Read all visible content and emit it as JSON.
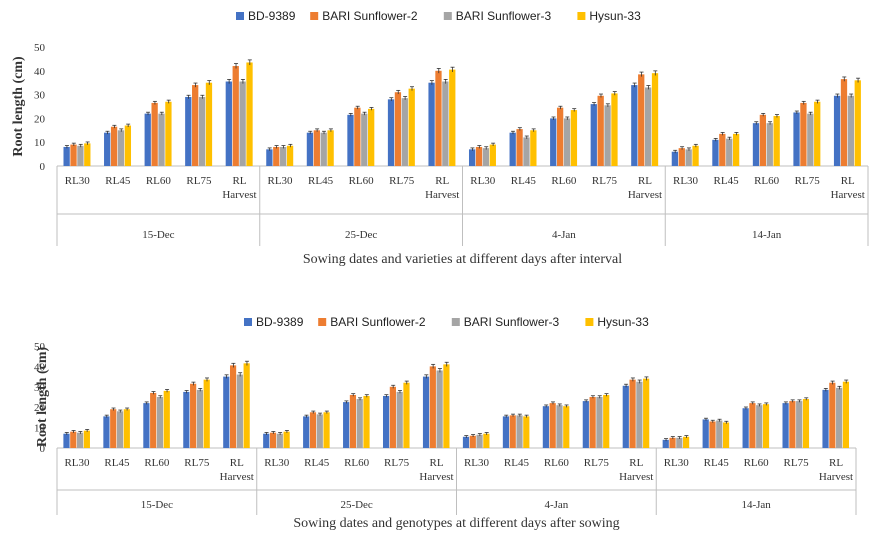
{
  "colors": {
    "BD-9389": "#4472C4",
    "BARI Sunflower-2": "#ED7D31",
    "BARI Sunflower-3": "#A5A5A5",
    "Hysun-33": "#FFC000"
  },
  "chart_data": [
    {
      "type": "bar",
      "title": "",
      "xlabel": "Sowing dates and varieties at different days after interval",
      "ylabel": "Root length (cm)",
      "ylim": [
        0,
        50
      ],
      "yticks": [
        0,
        10,
        20,
        30,
        40,
        50
      ],
      "grid": false,
      "legend": "top",
      "groups": [
        "15-Dec",
        "25-Dec",
        "4-Jan",
        "14-Jan"
      ],
      "categories": [
        "RL30",
        "RL45",
        "RL60",
        "RL75",
        "RL Harvest"
      ],
      "series": [
        {
          "name": "BD-9389",
          "values": [
            [
              8,
              14,
              22,
              29,
              35.5
            ],
            [
              7,
              14,
              21.5,
              28,
              35
            ],
            [
              7,
              14,
              20,
              26,
              34
            ],
            [
              6,
              11,
              18,
              22.5,
              29.5
            ]
          ]
        },
        {
          "name": "BARI Sunflower-2",
          "values": [
            [
              9,
              16.5,
              26.5,
              34,
              42
            ],
            [
              8,
              15,
              24.5,
              31,
              40
            ],
            [
              8,
              15.5,
              24.5,
              29.5,
              38.5
            ],
            [
              7.5,
              13.5,
              21.5,
              26.5,
              36.5
            ]
          ]
        },
        {
          "name": "BARI Sunflower-3",
          "values": [
            [
              8.5,
              15,
              22,
              29,
              35.5
            ],
            [
              8,
              14,
              22,
              28.5,
              35.5
            ],
            [
              7.5,
              12,
              20,
              25.5,
              33
            ],
            [
              7,
              11.5,
              18,
              22,
              29.5
            ]
          ]
        },
        {
          "name": "Hysun-33",
          "values": [
            [
              9.5,
              17,
              27,
              35,
              43.5
            ],
            [
              8.5,
              15,
              24,
              32.5,
              40.5
            ],
            [
              9,
              15,
              23.5,
              30.5,
              39
            ],
            [
              8.5,
              13.5,
              21,
              27,
              36
            ]
          ]
        }
      ]
    },
    {
      "type": "bar",
      "title": "",
      "xlabel": "Sowing dates and genotypes  at different days after sowing",
      "ylabel": "Root length (cm)",
      "ylim": [
        0,
        50
      ],
      "yticks": [
        0,
        10,
        20,
        30,
        40,
        50
      ],
      "grid": false,
      "legend": "top",
      "groups": [
        "15-Dec",
        "25-Dec",
        "4-Jan",
        "14-Jan"
      ],
      "categories": [
        "RL30",
        "RL45",
        "RL60",
        "RL75",
        "RL Harvest"
      ],
      "series": [
        {
          "name": "BD-9389",
          "values": [
            [
              7,
              15.5,
              22,
              27.5,
              35
            ],
            [
              7,
              15.5,
              22.5,
              25.5,
              35
            ],
            [
              5.5,
              15.5,
              20.5,
              23,
              30.5
            ],
            [
              4,
              14,
              19.5,
              22,
              28.5
            ]
          ]
        },
        {
          "name": "BARI Sunflower-2",
          "values": [
            [
              8,
              19,
              27,
              31.5,
              40.5
            ],
            [
              7.5,
              17.5,
              26,
              30,
              40
            ],
            [
              6,
              16,
              22,
              25,
              33.5
            ],
            [
              5,
              13,
              22,
              23,
              32
            ]
          ]
        },
        {
          "name": "BARI Sunflower-3",
          "values": [
            [
              7.5,
              18,
              25,
              28.5,
              36
            ],
            [
              7,
              16.5,
              24,
              27.5,
              38
            ],
            [
              6.5,
              16,
              21,
              25,
              32.5
            ],
            [
              5,
              13.5,
              21,
              23,
              29.5
            ]
          ]
        },
        {
          "name": "Hysun-33",
          "values": [
            [
              8.5,
              19,
              28,
              33.5,
              41.5
            ],
            [
              8,
              17.5,
              25.5,
              32,
              41
            ],
            [
              7,
              15.5,
              20.5,
              26,
              34
            ],
            [
              5.5,
              12.5,
              21.5,
              24,
              32.5
            ]
          ]
        }
      ]
    }
  ]
}
